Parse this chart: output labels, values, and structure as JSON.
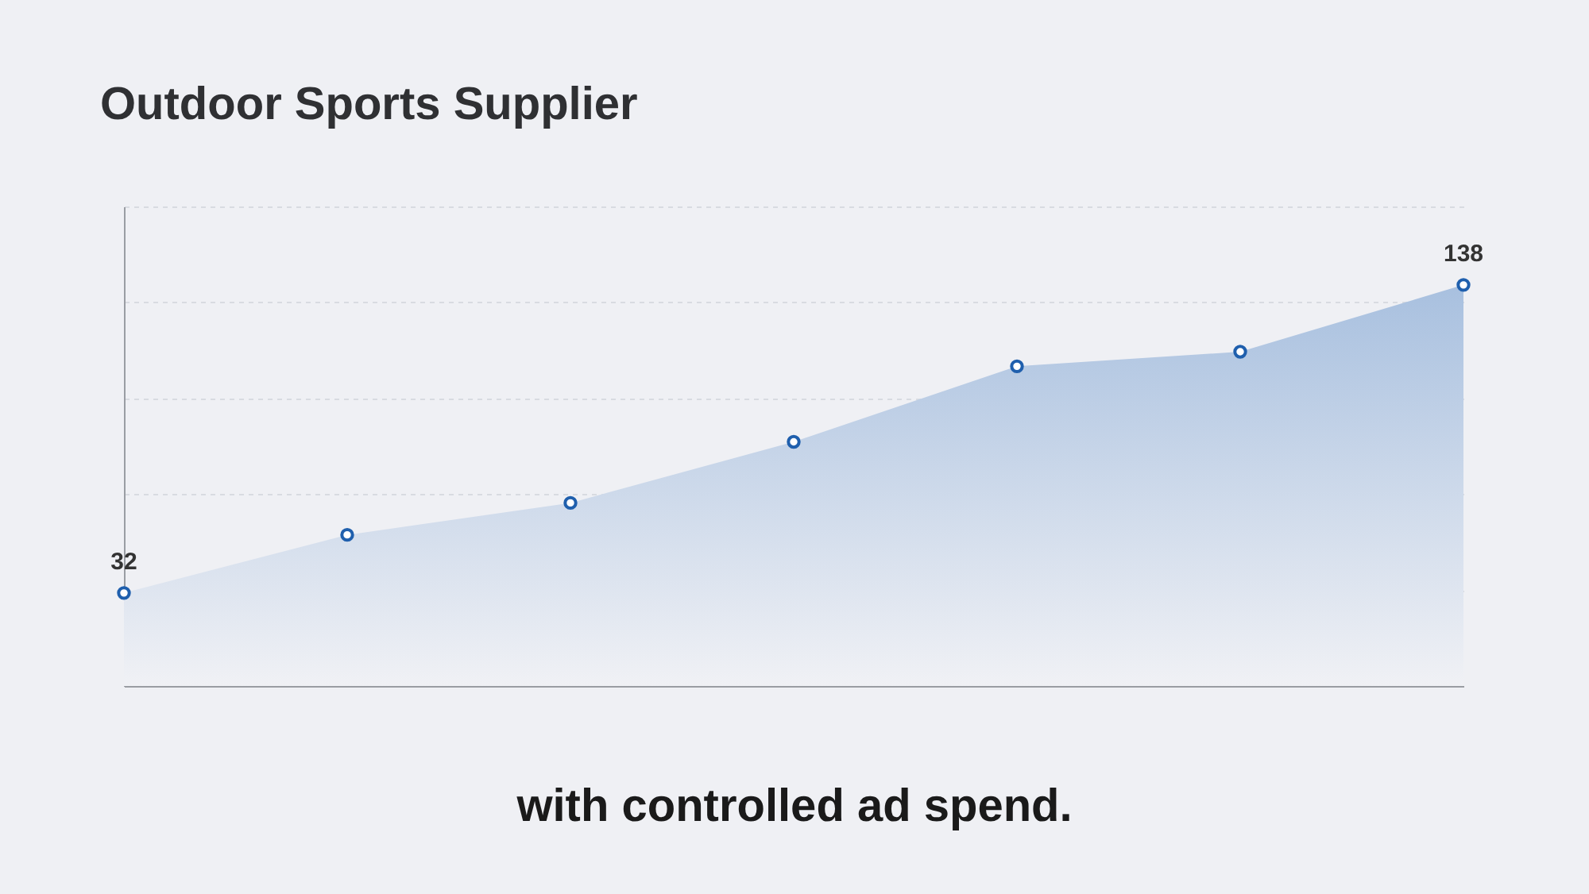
{
  "chart_data": {
    "type": "area",
    "title": "Outdoor Sports Supplier",
    "annotations": [
      "with controlled ad spend."
    ],
    "categories": [
      null,
      null,
      null,
      null,
      null,
      null,
      null
    ],
    "series": [
      {
        "color": "#a8c0df",
        "values": [
          32,
          52,
          63,
          84,
          110,
          115,
          138
        ],
        "value_labels": [
          "32",
          null,
          null,
          null,
          null,
          null,
          "138"
        ]
      }
    ],
    "ylim": [
      0,
      165
    ],
    "grid": "y",
    "marker": "circle"
  }
}
